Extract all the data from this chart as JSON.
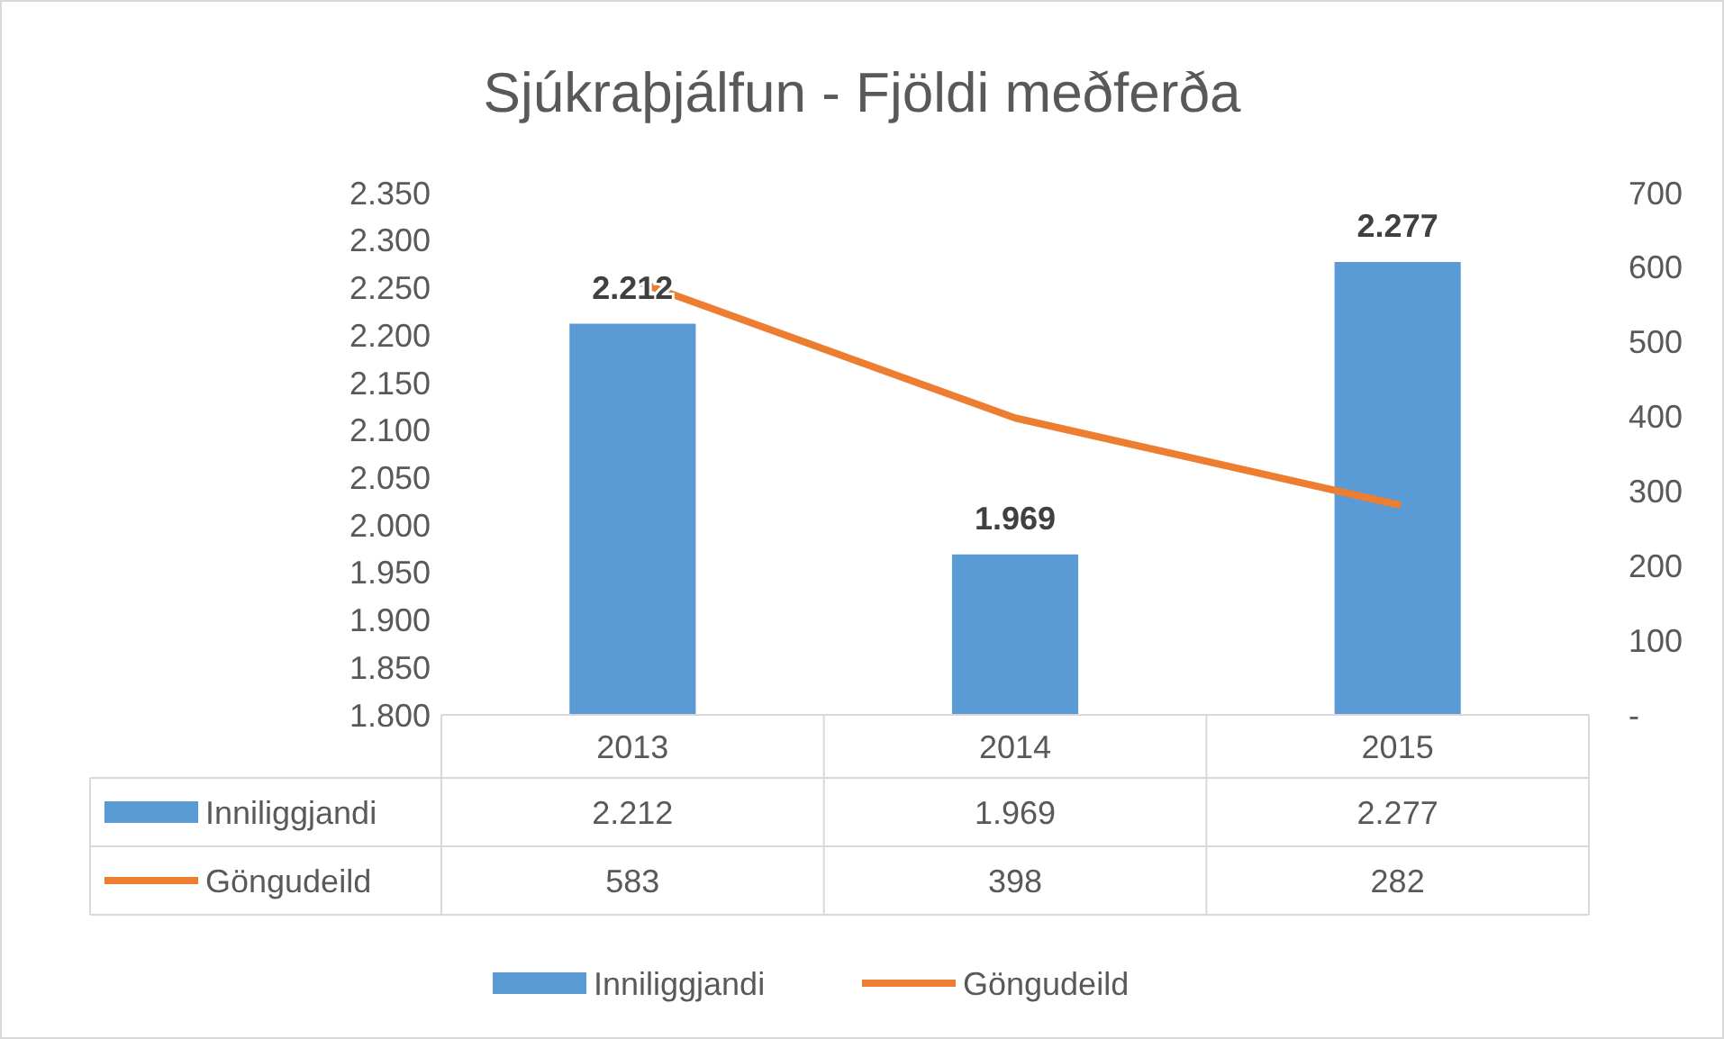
{
  "chart_data": {
    "type": "bar",
    "title": "Sjúkraþjálfun - Fjöldi meðferða",
    "categories": [
      "2013",
      "2014",
      "2015"
    ],
    "series": [
      {
        "name": "Inniliggjandi",
        "color": "#5b9bd5",
        "values": [
          2212,
          1969,
          2277
        ],
        "value_labels": [
          "2.212",
          "1.969",
          "2.277"
        ]
      },
      {
        "name": "Göngudeild",
        "type": "line",
        "axis": "y2",
        "color": "#ed7d31",
        "values": [
          583,
          398,
          282
        ],
        "value_labels": [
          "583",
          "398",
          "282"
        ],
        "line_style": "solid",
        "marker": "none"
      }
    ],
    "ylim": [
      1800,
      2350
    ],
    "yticks": [
      {
        "value": 1800,
        "label": "1.800"
      },
      {
        "value": 1850,
        "label": "1.850"
      },
      {
        "value": 1900,
        "label": "1.900"
      },
      {
        "value": 1950,
        "label": "1.950"
      },
      {
        "value": 2000,
        "label": "2.000"
      },
      {
        "value": 2050,
        "label": "2.050"
      },
      {
        "value": 2100,
        "label": "2.100"
      },
      {
        "value": 2150,
        "label": "2.150"
      },
      {
        "value": 2200,
        "label": "2.200"
      },
      {
        "value": 2250,
        "label": "2.250"
      },
      {
        "value": 2300,
        "label": "2.300"
      },
      {
        "value": 2350,
        "label": "2.350"
      }
    ],
    "y2lim": [
      0,
      700
    ],
    "y2ticks": [
      {
        "value": 0,
        "label": "-"
      },
      100,
      200,
      300,
      400,
      500,
      600,
      700
    ],
    "legend": "bottom"
  }
}
